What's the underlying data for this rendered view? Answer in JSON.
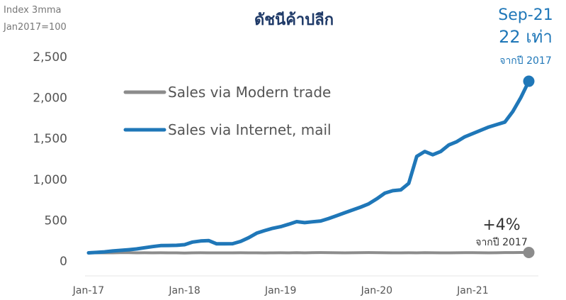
{
  "index_label_line1": "Index 3mma",
  "index_label_line2": "Jan2017=100",
  "chart_data": {
    "type": "line",
    "title": "ดัชนีค้าปลีก",
    "xlabel": "",
    "ylabel": "",
    "x_ticks": [
      "Jan-17",
      "Jan-18",
      "Jan-19",
      "Jan-20",
      "Jan-21"
    ],
    "y_ticks": [
      "2,500",
      "2,000",
      "1,500",
      "1,000",
      "500",
      "0"
    ],
    "ylim": [
      0,
      2500
    ],
    "legend_position": "top-left",
    "grid": false,
    "series": [
      {
        "name": "Sales via  Modern trade",
        "color": "#8c8c8c",
        "values": [
          100,
          100,
          100,
          100,
          102,
          102,
          100,
          101,
          100,
          101,
          100,
          100,
          98,
          100,
          101,
          100,
          100,
          100,
          100,
          101,
          100,
          100,
          99,
          100,
          101,
          100,
          102,
          100,
          102,
          103,
          102,
          101,
          100,
          101,
          102,
          103,
          102,
          101,
          100,
          100,
          101,
          100,
          102,
          101,
          100,
          100,
          101,
          102,
          102,
          101,
          100,
          101,
          103,
          103,
          104,
          104
        ]
      },
      {
        "name": "Sales via Internet, mail",
        "color": "#1f77b8",
        "values": [
          100,
          105,
          112,
          122,
          130,
          138,
          148,
          162,
          176,
          188,
          190,
          192,
          200,
          232,
          245,
          250,
          210,
          210,
          212,
          240,
          285,
          340,
          372,
          400,
          420,
          450,
          482,
          470,
          480,
          490,
          520,
          555,
          590,
          625,
          660,
          700,
          760,
          830,
          860,
          870,
          950,
          1280,
          1340,
          1300,
          1340,
          1420,
          1460,
          1520,
          1560,
          1600,
          1640,
          1670,
          1700,
          1830,
          2000,
          2200
        ]
      }
    ],
    "annotations": [
      {
        "lines": [
          "Sep-21",
          "22 เท่า",
          "จากปี 2017"
        ],
        "series": "Sales via Internet, mail"
      },
      {
        "lines": [
          "+4%",
          "จากปี 2017"
        ],
        "series": "Sales via  Modern trade"
      }
    ]
  }
}
